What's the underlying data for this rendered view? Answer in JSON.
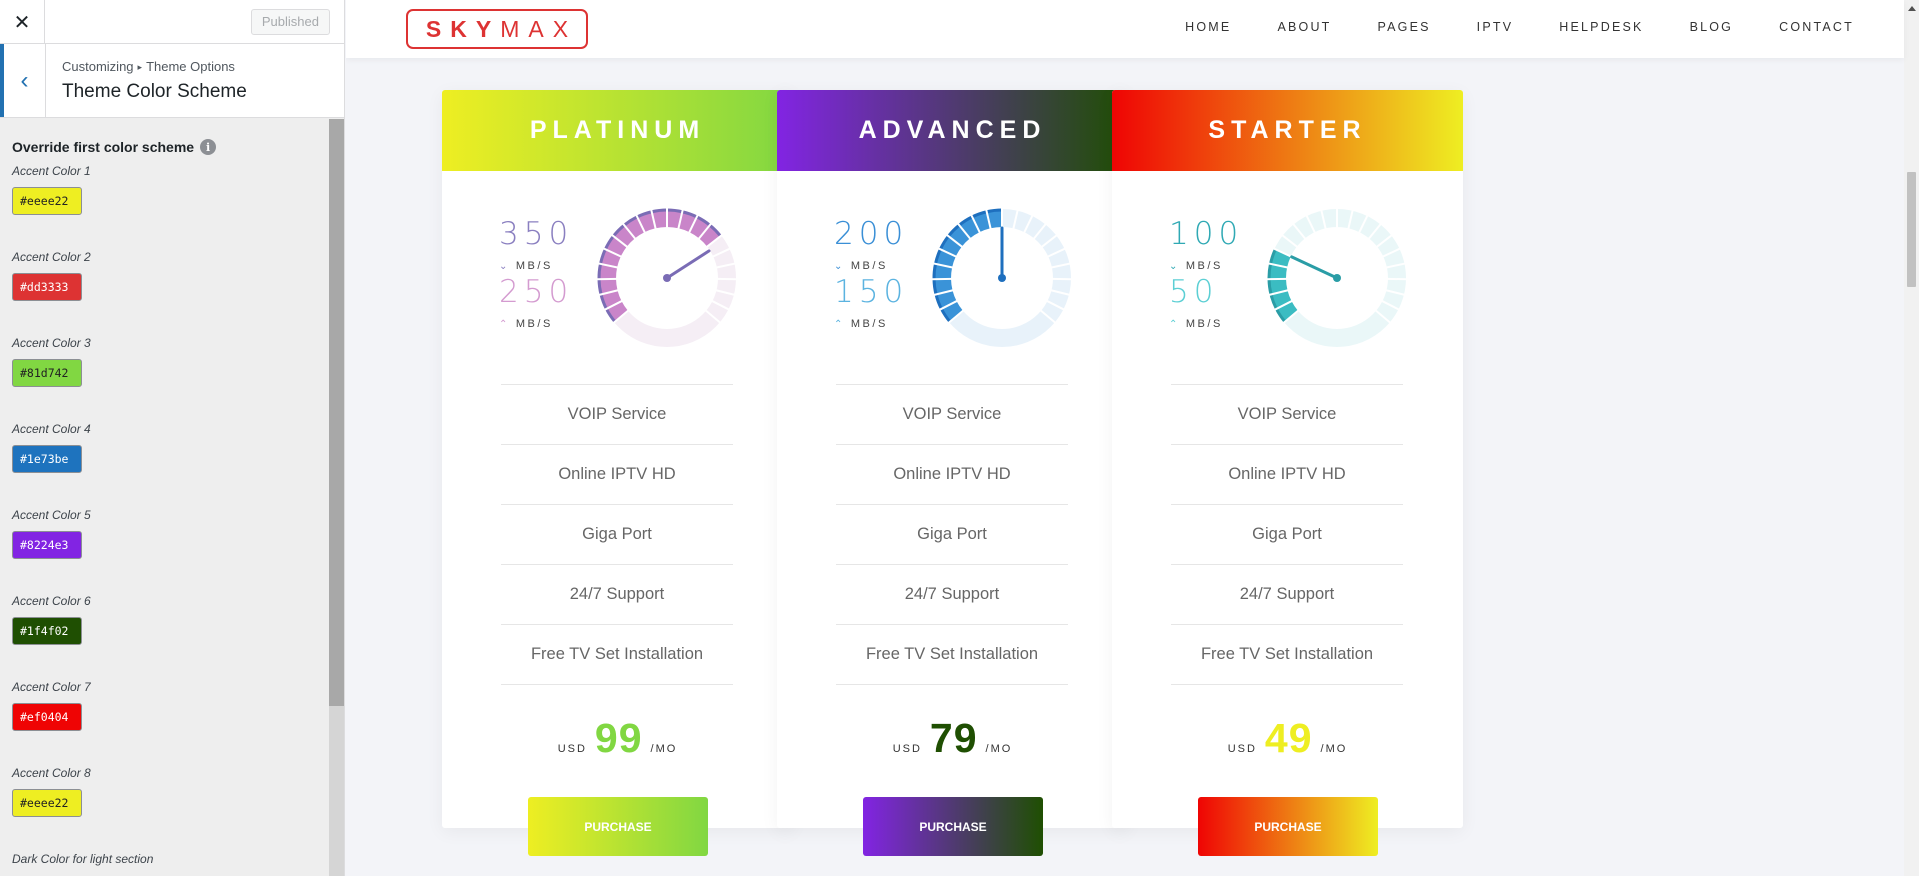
{
  "customizer": {
    "close_glyph": "✕",
    "publish_label": "Published",
    "back_glyph": "‹",
    "breadcrumb": {
      "parent": "Customizing",
      "separator": "▸",
      "child": "Theme Options"
    },
    "section_title": "Theme Color Scheme",
    "override_label": "Override first color scheme",
    "info_glyph": "i",
    "colors": [
      {
        "label": "Accent Color 1",
        "value": "#eeee22",
        "text_tone": "light"
      },
      {
        "label": "Accent Color 2",
        "value": "#dd3333",
        "text_tone": "dark"
      },
      {
        "label": "Accent Color 3",
        "value": "#81d742",
        "text_tone": "light"
      },
      {
        "label": "Accent Color 4",
        "value": "#1e73be",
        "text_tone": "dark"
      },
      {
        "label": "Accent Color 5",
        "value": "#8224e3",
        "text_tone": "dark"
      },
      {
        "label": "Accent Color 6",
        "value": "#1f4f02",
        "text_tone": "dark"
      },
      {
        "label": "Accent Color 7",
        "value": "#ef0404",
        "text_tone": "dark"
      },
      {
        "label": "Accent Color 8",
        "value": "#eeee22",
        "text_tone": "light"
      }
    ],
    "next_label": "Dark Color for light section"
  },
  "site": {
    "logo": {
      "bold": "SKY",
      "light": "MAX",
      "color": "#dd3333"
    },
    "nav": [
      "HOME",
      "ABOUT",
      "PAGES",
      "IPTV",
      "HELPDESK",
      "BLOG",
      "CONTACT"
    ]
  },
  "plans": [
    {
      "name": "PLATINUM",
      "gradient": [
        "#eeee22",
        "#81d742"
      ],
      "download": "350",
      "upload": "250",
      "unit": "MB/S",
      "down_arrow": "⌄",
      "up_arrow": "⌃",
      "down_color": "#8a7fc0",
      "up_color": "#d49bd0",
      "gauge_color": "#c985c9",
      "gauge_light": "#f5eef5",
      "gauge_dark": "#7a6cb5",
      "gauge_level": 0.72,
      "features": [
        "VOIP Service",
        "Online IPTV HD",
        "Giga Port",
        "24/7 Support",
        "Free TV Set Installation"
      ],
      "currency": "USD",
      "price": "99",
      "period": "/MO",
      "price_color": "#81d742",
      "button_label": "PURCHASE"
    },
    {
      "name": "ADVANCED",
      "gradient": [
        "#8224e3",
        "#1f4f02"
      ],
      "download": "200",
      "upload": "150",
      "unit": "MB/S",
      "down_arrow": "⌄",
      "up_arrow": "⌃",
      "down_color": "#3a8fd6",
      "up_color": "#5bb3e0",
      "gauge_color": "#3a93d8",
      "gauge_light": "#e8f2fa",
      "gauge_dark": "#1e6fbe",
      "gauge_level": 0.5,
      "features": [
        "VOIP Service",
        "Online IPTV HD",
        "Giga Port",
        "24/7 Support",
        "Free TV Set Installation"
      ],
      "currency": "USD",
      "price": "79",
      "period": "/MO",
      "price_color": "#1f4f02",
      "button_label": "PURCHASE"
    },
    {
      "name": "STARTER",
      "gradient": [
        "#ef0404",
        "#eeee22"
      ],
      "download": "100",
      "upload": "50",
      "unit": "MB/S",
      "down_arrow": "⌄",
      "up_arrow": "⌃",
      "down_color": "#2fa9b4",
      "up_color": "#5ccfd4",
      "gauge_color": "#3bbcc2",
      "gauge_light": "#eaf7f8",
      "gauge_dark": "#2a9da6",
      "gauge_level": 0.25,
      "features": [
        "VOIP Service",
        "Online IPTV HD",
        "Giga Port",
        "24/7 Support",
        "Free TV Set Installation"
      ],
      "currency": "USD",
      "price": "49",
      "period": "/MO",
      "price_color": "#eeee22",
      "button_label": "PURCHASE"
    }
  ]
}
